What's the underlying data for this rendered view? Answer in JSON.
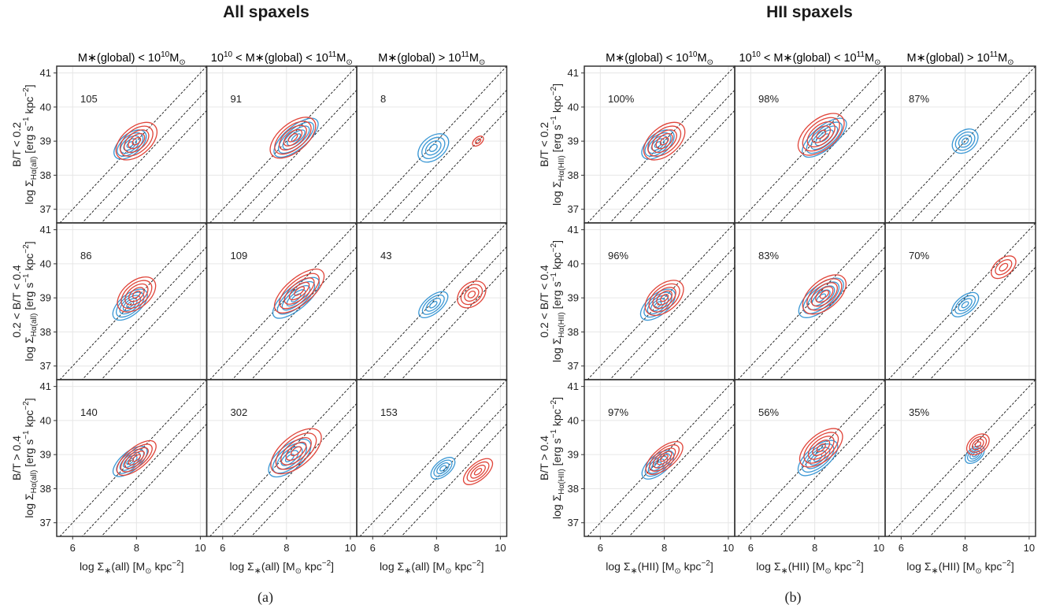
{
  "figure": {
    "panel_a": {
      "title": "All spaxels",
      "caption": "(a)"
    },
    "panel_b": {
      "title": "HII spaxels",
      "caption": "(b)"
    }
  },
  "colors": {
    "blue": "#3a97d4",
    "red": "#e0453a",
    "frame": "#333333",
    "grid": "#e6e6e6"
  },
  "chart_data": [
    {
      "id": "panel_a",
      "type": "contour",
      "title": "All spaxels",
      "column_titles": [
        {
          "pre": "M∗(global) < 10",
          "exp1": "10",
          "post": "M",
          "sub": "⊙"
        },
        {
          "pre": "10",
          "exp0": "10",
          "mid": " < M∗(global) < 10",
          "exp1": "11",
          "post": "M",
          "sub": "⊙"
        },
        {
          "pre": "M∗(global) >  10",
          "exp1": "11",
          "post": "M",
          "sub": "⊙"
        }
      ],
      "row_labels": [
        {
          "line1": "B/T  <  0.2",
          "line2_pre": "log Σ",
          "line2_sub": "Hα(all)",
          "line2_post": " [erg s",
          "unit_exp": "−1",
          "unit_post": " kpc",
          "unit_exp2": "−2",
          "close": "]"
        },
        {
          "line1": "0.2  <  B/T  <  0.4",
          "line2_pre": "log Σ",
          "line2_sub": "Hα(all)",
          "line2_post": " [erg s",
          "unit_exp": "−1",
          "unit_post": " kpc",
          "unit_exp2": "−2",
          "close": "]"
        },
        {
          "line1": "B/T  >  0.4",
          "line2_pre": "log Σ",
          "line2_sub": "Hα(all)",
          "line2_post": " [erg s",
          "unit_exp": "−1",
          "unit_post": " kpc",
          "unit_exp2": "−2",
          "close": "]"
        }
      ],
      "xlabel": {
        "pre": "log Σ",
        "sub": "∗",
        "mid": "(all) [M",
        "sub2": "⊙",
        "post": " kpc",
        "exp": "−2",
        "close": "]"
      },
      "xlim": [
        5.5,
        10.2
      ],
      "ylim": [
        36.6,
        41.2
      ],
      "xticks": [
        6,
        8,
        10
      ],
      "yticks": [
        37,
        38,
        39,
        40,
        41
      ],
      "diagonal_lines": [
        {
          "slope": 1,
          "intercept": 31.0
        },
        {
          "slope": 1,
          "intercept": 30.3
        },
        {
          "slope": 1,
          "intercept": 29.7
        }
      ],
      "annotations": [
        [
          "105",
          "91",
          "8"
        ],
        [
          "86",
          "109",
          "43"
        ],
        [
          "140",
          "302",
          "153"
        ]
      ],
      "blue": [
        [
          {
            "cx": 7.8,
            "cy": 38.9,
            "sx": 0.6,
            "sy": 0.55,
            "n": 5
          },
          {
            "cx": 8.3,
            "cy": 39.1,
            "sx": 0.85,
            "sy": 0.6,
            "n": 5
          },
          {
            "cx": 7.9,
            "cy": 38.8,
            "sx": 0.55,
            "sy": 0.6,
            "n": 4
          }
        ],
        [
          {
            "cx": 7.8,
            "cy": 38.8,
            "sx": 0.65,
            "sy": 0.55,
            "n": 5
          },
          {
            "cx": 8.3,
            "cy": 39.0,
            "sx": 0.9,
            "sy": 0.6,
            "n": 5
          },
          {
            "cx": 7.9,
            "cy": 38.8,
            "sx": 0.55,
            "sy": 0.45,
            "n": 4
          }
        ],
        [
          {
            "cx": 7.8,
            "cy": 38.8,
            "sx": 0.65,
            "sy": 0.5,
            "n": 5
          },
          {
            "cx": 8.1,
            "cy": 38.9,
            "sx": 0.8,
            "sy": 0.65,
            "n": 5
          },
          {
            "cx": 8.2,
            "cy": 38.6,
            "sx": 0.45,
            "sy": 0.4,
            "n": 4
          }
        ]
      ],
      "red": [
        [
          {
            "cx": 8.0,
            "cy": 39.0,
            "sx": 0.75,
            "sy": 0.75,
            "n": 5
          },
          {
            "cx": 8.2,
            "cy": 39.1,
            "sx": 0.85,
            "sy": 0.75,
            "n": 5
          },
          {
            "cx": 9.3,
            "cy": 39.0,
            "sx": 0.2,
            "sy": 0.2,
            "n": 2
          }
        ],
        [
          {
            "cx": 8.0,
            "cy": 39.1,
            "sx": 0.7,
            "sy": 0.7,
            "n": 5
          },
          {
            "cx": 8.4,
            "cy": 39.2,
            "sx": 0.95,
            "sy": 0.7,
            "n": 5
          },
          {
            "cx": 9.1,
            "cy": 39.1,
            "sx": 0.5,
            "sy": 0.6,
            "n": 4
          }
        ],
        [
          {
            "cx": 8.0,
            "cy": 38.9,
            "sx": 0.75,
            "sy": 0.55,
            "n": 5
          },
          {
            "cx": 8.3,
            "cy": 39.1,
            "sx": 0.95,
            "sy": 0.8,
            "n": 5
          },
          {
            "cx": 9.3,
            "cy": 38.5,
            "sx": 0.55,
            "sy": 0.45,
            "n": 4
          }
        ]
      ]
    },
    {
      "id": "panel_b",
      "type": "contour",
      "title": "HII spaxels",
      "column_titles": [
        {
          "pre": "M∗(global) < 10",
          "exp1": "10",
          "post": "M",
          "sub": "⊙"
        },
        {
          "pre": "10",
          "exp0": "10",
          "mid": " < M∗(global) < 10",
          "exp1": "11",
          "post": "M",
          "sub": "⊙"
        },
        {
          "pre": "M∗(global) >  10",
          "exp1": "11",
          "post": "M",
          "sub": "⊙"
        }
      ],
      "row_labels": [
        {
          "line1": "B/T  <  0.2",
          "line2_pre": "log Σ",
          "line2_sub": "Hα(HII)",
          "line2_post": " [erg s",
          "unit_exp": "−1",
          "unit_post": " kpc",
          "unit_exp2": "−2",
          "close": "]"
        },
        {
          "line1": "0.2  <  B/T  <  0.4",
          "line2_pre": "log Σ",
          "line2_sub": "Hα(HII)",
          "line2_post": " [erg s",
          "unit_exp": "−1",
          "unit_post": " kpc",
          "unit_exp2": "−2",
          "close": "]"
        },
        {
          "line1": "B/T  >  0.4",
          "line2_pre": "log Σ",
          "line2_sub": "Hα(HII)",
          "line2_post": " [erg s",
          "unit_exp": "−1",
          "unit_post": " kpc",
          "unit_exp2": "−2",
          "close": "]"
        }
      ],
      "xlabel": {
        "pre": "log Σ",
        "sub": "∗",
        "mid": "(HII) [M",
        "sub2": "⊙",
        "post": " kpc",
        "exp": "−2",
        "close": "]"
      },
      "xlim": [
        5.5,
        10.2
      ],
      "ylim": [
        36.6,
        41.2
      ],
      "xticks": [
        6,
        8,
        10
      ],
      "yticks": [
        37,
        38,
        39,
        40,
        41
      ],
      "diagonal_lines": [
        {
          "slope": 1,
          "intercept": 31.0
        },
        {
          "slope": 1,
          "intercept": 30.3
        },
        {
          "slope": 1,
          "intercept": 29.7
        }
      ],
      "annotations": [
        [
          "100%",
          "98%",
          "87%"
        ],
        [
          "96%",
          "83%",
          "70%"
        ],
        [
          "97%",
          "56%",
          "35%"
        ]
      ],
      "blue": [
        [
          {
            "cx": 7.8,
            "cy": 38.9,
            "sx": 0.6,
            "sy": 0.55,
            "n": 5
          },
          {
            "cx": 8.3,
            "cy": 39.1,
            "sx": 0.85,
            "sy": 0.6,
            "n": 5
          },
          {
            "cx": 8.0,
            "cy": 39.0,
            "sx": 0.45,
            "sy": 0.55,
            "n": 4
          }
        ],
        [
          {
            "cx": 7.8,
            "cy": 38.8,
            "sx": 0.65,
            "sy": 0.55,
            "n": 5
          },
          {
            "cx": 8.2,
            "cy": 39.0,
            "sx": 0.85,
            "sy": 0.65,
            "n": 5
          },
          {
            "cx": 8.0,
            "cy": 38.8,
            "sx": 0.5,
            "sy": 0.45,
            "n": 4
          }
        ],
        [
          {
            "cx": 7.8,
            "cy": 38.7,
            "sx": 0.6,
            "sy": 0.5,
            "n": 5
          },
          {
            "cx": 8.1,
            "cy": 38.9,
            "sx": 0.75,
            "sy": 0.6,
            "n": 5
          },
          {
            "cx": 8.3,
            "cy": 39.0,
            "sx": 0.35,
            "sy": 0.35,
            "n": 4
          }
        ]
      ],
      "red": [
        [
          {
            "cx": 8.0,
            "cy": 39.0,
            "sx": 0.75,
            "sy": 0.75,
            "n": 5
          },
          {
            "cx": 8.2,
            "cy": 39.2,
            "sx": 0.85,
            "sy": 0.8,
            "n": 5
          }
        ],
        [
          {
            "cx": 8.0,
            "cy": 39.0,
            "sx": 0.7,
            "sy": 0.7,
            "n": 5
          },
          {
            "cx": 8.3,
            "cy": 39.1,
            "sx": 0.8,
            "sy": 0.75,
            "n": 5
          },
          {
            "cx": 9.2,
            "cy": 39.9,
            "sx": 0.45,
            "sy": 0.45,
            "n": 3
          }
        ],
        [
          {
            "cx": 8.0,
            "cy": 38.9,
            "sx": 0.7,
            "sy": 0.55,
            "n": 5
          },
          {
            "cx": 8.2,
            "cy": 39.2,
            "sx": 0.8,
            "sy": 0.7,
            "n": 5
          },
          {
            "cx": 8.4,
            "cy": 39.3,
            "sx": 0.4,
            "sy": 0.45,
            "n": 4
          }
        ]
      ]
    }
  ]
}
